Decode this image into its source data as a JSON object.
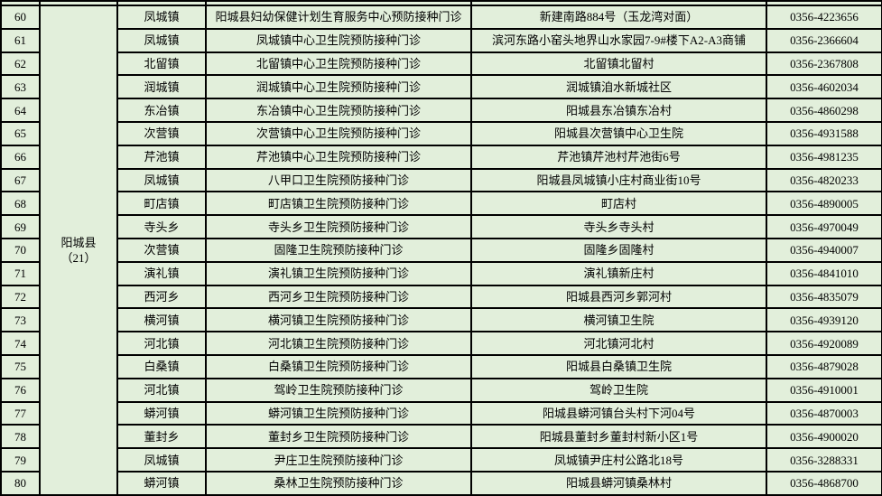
{
  "colors": {
    "table_background": "#e2efdb",
    "border": "#000000",
    "text": "#000000"
  },
  "table": {
    "county": {
      "name": "阳城县",
      "count": "（21）"
    },
    "rows": [
      {
        "num": "60",
        "town": "凤城镇",
        "clinic": "阳城县妇幼保健计划生育服务中心预防接种门诊",
        "address": "新建南路884号（玉龙湾对面）",
        "phone": "0356-4223656"
      },
      {
        "num": "61",
        "town": "凤城镇",
        "clinic": "凤城镇中心卫生院预防接种门诊",
        "address": "滨河东路小窑头地界山水家园7-9#楼下A2-A3商铺",
        "phone": "0356-2366604"
      },
      {
        "num": "62",
        "town": "北留镇",
        "clinic": "北留镇中心卫生院预防接种门诊",
        "address": "北留镇北留村",
        "phone": "0356-2367808"
      },
      {
        "num": "63",
        "town": "润城镇",
        "clinic": "润城镇中心卫生院预防接种门诊",
        "address": "润城镇洎水新城社区",
        "phone": "0356-4602034"
      },
      {
        "num": "64",
        "town": "东冶镇",
        "clinic": "东冶镇中心卫生院预防接种门诊",
        "address": "阳城县东冶镇东冶村",
        "phone": "0356-4860298"
      },
      {
        "num": "65",
        "town": "次营镇",
        "clinic": "次营镇中心卫生院预防接种门诊",
        "address": "阳城县次营镇中心卫生院",
        "phone": "0356-4931588"
      },
      {
        "num": "66",
        "town": "芹池镇",
        "clinic": "芹池镇中心卫生院预防接种门诊",
        "address": "芹池镇芹池村芹池街6号",
        "phone": "0356-4981235"
      },
      {
        "num": "67",
        "town": "凤城镇",
        "clinic": "八甲口卫生院预防接种门诊",
        "address": "阳城县凤城镇小庄村商业街10号",
        "phone": "0356-4820233"
      },
      {
        "num": "68",
        "town": "町店镇",
        "clinic": "町店镇卫生院预防接种门诊",
        "address": "町店村",
        "phone": "0356-4890005"
      },
      {
        "num": "69",
        "town": "寺头乡",
        "clinic": "寺头乡卫生院预防接种门诊",
        "address": "寺头乡寺头村",
        "phone": "0356-4970049"
      },
      {
        "num": "70",
        "town": "次营镇",
        "clinic": "固隆卫生院预防接种门诊",
        "address": "固隆乡固隆村",
        "phone": "0356-4940007"
      },
      {
        "num": "71",
        "town": "演礼镇",
        "clinic": "演礼镇卫生院预防接种门诊",
        "address": "演礼镇新庄村",
        "phone": "0356-4841010"
      },
      {
        "num": "72",
        "town": "西河乡",
        "clinic": "西河乡卫生院预防接种门诊",
        "address": "阳城县西河乡郭河村",
        "phone": "0356-4835079"
      },
      {
        "num": "73",
        "town": "横河镇",
        "clinic": "横河镇卫生院预防接种门诊",
        "address": "横河镇卫生院",
        "phone": "0356-4939120"
      },
      {
        "num": "74",
        "town": "河北镇",
        "clinic": "河北镇卫生院预防接种门诊",
        "address": "河北镇河北村",
        "phone": "0356-4920089"
      },
      {
        "num": "75",
        "town": "白桑镇",
        "clinic": "白桑镇卫生院预防接种门诊",
        "address": "阳城县白桑镇卫生院",
        "phone": "0356-4879028"
      },
      {
        "num": "76",
        "town": "河北镇",
        "clinic": "驾岭卫生院预防接种门诊",
        "address": "驾岭卫生院",
        "phone": "0356-4910001"
      },
      {
        "num": "77",
        "town": "蟒河镇",
        "clinic": "蟒河镇卫生院预防接种门诊",
        "address": "阳城县蟒河镇台头村下河04号",
        "phone": "0356-4870003"
      },
      {
        "num": "78",
        "town": "董封乡",
        "clinic": "董封乡卫生院预防接种门诊",
        "address": "阳城县董封乡董封村新小区1号",
        "phone": "0356-4900020"
      },
      {
        "num": "79",
        "town": "凤城镇",
        "clinic": "尹庄卫生院预防接种门诊",
        "address": "凤城镇尹庄村公路北18号",
        "phone": "0356-3288331"
      },
      {
        "num": "80",
        "town": "蟒河镇",
        "clinic": "桑林卫生院预防接种门诊",
        "address": "阳城县蟒河镇桑林村",
        "phone": "0356-4868700"
      }
    ]
  }
}
